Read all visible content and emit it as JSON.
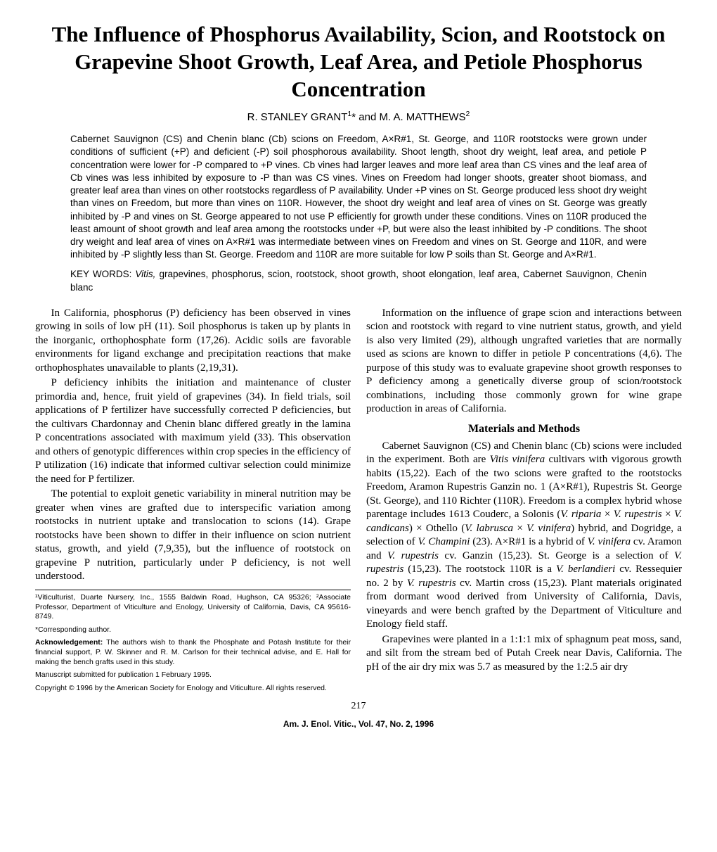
{
  "title": "The Influence of Phosphorus Availability, Scion, and Rootstock on Grapevine Shoot Growth, Leaf Area, and Petiole Phosphorus Concentration",
  "authors_html": "R. STANLEY GRANT<sup>1</sup>* and M. A. MATTHEWS<sup>2</sup>",
  "abstract": "Cabernet Sauvignon (CS) and Chenin blanc (Cb) scions on Freedom, A×R#1, St. George, and 110R rootstocks were grown under conditions of sufficient (+P) and deficient (-P) soil phosphorous availability. Shoot length, shoot dry weight, leaf area, and petiole P concentration were lower for -P compared to +P vines. Cb vines had larger leaves and more leaf area than CS vines and the leaf area of Cb vines was less inhibited by exposure to -P than was CS vines. Vines on Freedom had longer shoots, greater shoot biomass, and greater leaf area than vines on other rootstocks regardless of P availability. Under +P vines on St. George produced less shoot dry weight than vines on Freedom, but more than vines on 110R. However, the shoot dry weight and leaf area of vines on St. George was greatly inhibited by -P and vines on St. George appeared to not use P efficiently for growth under these conditions. Vines on 110R produced the least amount of shoot growth and leaf area among the rootstocks under +P, but were also the least inhibited by -P conditions. The shoot dry weight and leaf area of vines on A×R#1 was intermediate between vines on Freedom and vines on St. George and 110R, and were inhibited by -P slightly less than St. George. Freedom and 110R are more suitable for low P soils than St. George and A×R#1.",
  "keywords_label": "KEY WORDS:",
  "keywords_italic": "Vitis,",
  "keywords_rest": " grapevines, phosphorus, scion, rootstock, shoot growth, shoot elongation, leaf area, Cabernet Sauvignon, Chenin blanc",
  "para1": "In California, phosphorus (P) deficiency has been observed in vines growing in soils of low pH (11). Soil phosphorus is taken up by plants in the inorganic, orthophosphate form (17,26). Acidic soils are favorable environments for ligand exchange and precipitation reactions that make orthophosphates unavailable to plants (2,19,31).",
  "para2": "P deficiency inhibits the initiation and maintenance of cluster primordia and, hence, fruit yield of grapevines (34). In field trials, soil applications of P fertilizer have successfully corrected P deficiencies, but the cultivars Chardonnay and Chenin blanc differed greatly in the lamina P concentrations associated with maximum yield (33). This observation and others of genotypic differences within crop species in the efficiency of P utilization (16) indicate that informed cultivar selection could minimize the need for P fertilizer.",
  "para3": "The potential to exploit genetic variability in mineral nutrition may be greater when vines are grafted due to interspecific variation among rootstocks in nutrient uptake and translocation to scions (14). Grape rootstocks have been shown to differ in their influence on scion nutrient status, growth, and yield (7,9,35), but the influence of rootstock on grapevine P nutrition, particularly under P deficiency, is not well understood.",
  "footnote_affil": "¹Viticulturist, Duarte Nursery, Inc., 1555 Baldwin Road, Hughson, CA 95326; ²Associate Professor, Department of Viticulture and Enology, University of California, Davis, CA 95616-8749.",
  "footnote_corr": "*Corresponding author.",
  "footnote_ack_label": "Acknowledgement:",
  "footnote_ack": " The authors wish to thank the Phosphate and Potash Institute for their financial support, P. W. Skinner and R. M. Carlson for their technical advise, and E. Hall for making the bench grafts used in this study.",
  "footnote_submitted": "Manuscript submitted for publication 1 February 1995.",
  "footnote_copyright": "Copyright © 1996 by the American Society for Enology and Viticulture. All rights reserved.",
  "para4": "Information on the influence of grape scion and interactions between scion and rootstock with regard to vine nutrient status, growth, and yield is also very limited (29), although ungrafted varieties that are normally used as scions are known to differ in petiole P concentrations (4,6). The purpose of this study was to evaluate grapevine shoot growth responses to P deficiency among a genetically diverse group of scion/rootstock combinations, including those commonly grown for wine grape production in areas of California.",
  "methods_head": "Materials and Methods",
  "para5_html": "Cabernet Sauvignon (CS) and Chenin blanc (Cb) scions were included in the experiment. Both are <span class=\"italic\">Vitis vinifera</span> cultivars with vigorous growth habits (15,22). Each of the two scions were grafted to the rootstocks Freedom, Aramon Rupestris Ganzin no. 1 (A×R#1), Rupestris St. George (St. George), and 110 Richter (110R). Freedom is a complex hybrid whose parentage includes 1613 Couderc, a Solonis (<span class=\"italic\">V. riparia</span> × <span class=\"italic\">V. rupestris</span> × <span class=\"italic\">V. candicans</span>) × Othello (<span class=\"italic\">V. labrusca</span> × <span class=\"italic\">V. vinifera</span>) hybrid, and Dogridge, a selection of <span class=\"italic\">V. Champini</span> (23). A×R#1 is a hybrid of <span class=\"italic\">V. vinifera</span> cv. Aramon and <span class=\"italic\">V. rupestris</span> cv. Ganzin (15,23). St. George is a selection of <span class=\"italic\">V. rupestris</span> (15,23). The rootstock 110R is a <span class=\"italic\">V. berlandieri</span> cv. Ressequier no. 2 by <span class=\"italic\">V. rupestris</span> cv. Martin cross (15,23). Plant materials originated from dormant wood derived from University of California, Davis, vineyards and were bench grafted by the Department of Viticulture and Enology field staff.",
  "para6": "Grapevines were planted in a 1:1:1 mix of sphagnum peat moss, sand, and silt from the stream bed of Putah Creek near Davis, California. The pH of the air dry mix was 5.7 as measured by the 1:2.5 air dry",
  "page_num": "217",
  "journal": "Am. J. Enol. Vitic., Vol. 47, No. 2, 1996"
}
